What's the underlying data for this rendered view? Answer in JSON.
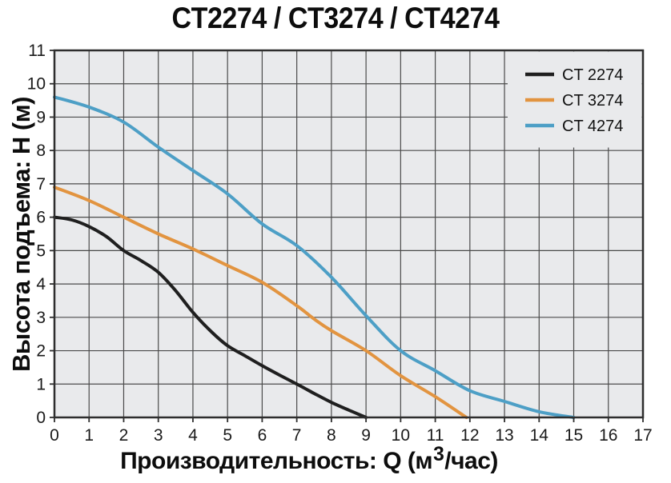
{
  "chart_data": {
    "type": "line",
    "title": "CT2274 / CT3274 / CT4274",
    "xlabel": "Производительность: Q (м³/час)",
    "xlabel_parts": {
      "prefix": "Производительность: Q (м",
      "sup": "3",
      "suffix": "/час)"
    },
    "ylabel": "Высота подъема: Н (м)",
    "xlim": [
      0,
      17
    ],
    "ylim": [
      0,
      11
    ],
    "x_ticks": [
      0,
      1,
      2,
      3,
      4,
      5,
      6,
      7,
      8,
      9,
      10,
      11,
      12,
      13,
      14,
      15,
      16,
      17
    ],
    "y_ticks": [
      0,
      1,
      2,
      3,
      4,
      5,
      6,
      7,
      8,
      9,
      10,
      11
    ],
    "grid": true,
    "legend_position": "top-right",
    "plot_bg_color": "#e9eaec",
    "legend_bg_color": "#e9eaec",
    "grid_color": "#4b4b4b",
    "frame_color": "#2e2e2e",
    "tick_color": "#2e2e2e",
    "tick_label_color": "#1a1a1a",
    "series": [
      {
        "name": "CT 2274",
        "color": "#1f1f1f",
        "points": [
          [
            0,
            6.0
          ],
          [
            0.5,
            5.92
          ],
          [
            1,
            5.72
          ],
          [
            1.5,
            5.42
          ],
          [
            2,
            5.0
          ],
          [
            2.5,
            4.7
          ],
          [
            3,
            4.35
          ],
          [
            3.5,
            3.8
          ],
          [
            4,
            3.15
          ],
          [
            4.5,
            2.6
          ],
          [
            5,
            2.15
          ],
          [
            5.5,
            1.85
          ],
          [
            6,
            1.55
          ],
          [
            6.5,
            1.27
          ],
          [
            7,
            1.0
          ],
          [
            7.5,
            0.72
          ],
          [
            8,
            0.45
          ],
          [
            8.5,
            0.22
          ],
          [
            9,
            0
          ]
        ]
      },
      {
        "name": "CT 3274",
        "color": "#e29440",
        "points": [
          [
            0,
            6.9
          ],
          [
            1,
            6.5
          ],
          [
            2,
            6.0
          ],
          [
            3,
            5.5
          ],
          [
            4,
            5.05
          ],
          [
            5,
            4.55
          ],
          [
            6,
            4.05
          ],
          [
            7,
            3.35
          ],
          [
            7.5,
            2.95
          ],
          [
            8,
            2.6
          ],
          [
            9,
            2.0
          ],
          [
            10,
            1.25
          ],
          [
            11,
            0.62
          ],
          [
            11.9,
            0
          ]
        ]
      },
      {
        "name": "CT 4274",
        "color": "#4d9fc6",
        "points": [
          [
            0,
            9.6
          ],
          [
            1,
            9.3
          ],
          [
            2,
            8.85
          ],
          [
            3,
            8.1
          ],
          [
            4,
            7.4
          ],
          [
            5,
            6.7
          ],
          [
            6,
            5.8
          ],
          [
            7,
            5.15
          ],
          [
            8,
            4.2
          ],
          [
            9,
            3.05
          ],
          [
            10,
            2.0
          ],
          [
            11,
            1.4
          ],
          [
            12,
            0.8
          ],
          [
            13,
            0.48
          ],
          [
            14,
            0.17
          ],
          [
            15,
            0
          ]
        ]
      }
    ]
  }
}
